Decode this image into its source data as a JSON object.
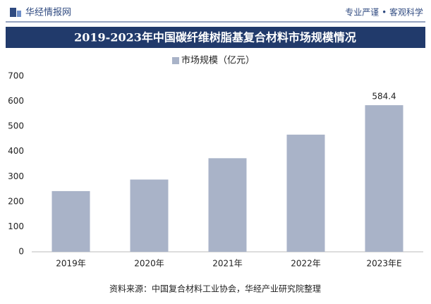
{
  "header": {
    "logo": "华经情报网",
    "slogan": "专业严谨 • 客观科学"
  },
  "chart_data": {
    "type": "bar",
    "title": "2019-2023年中国碳纤维树脂基复合材料市场规模情况",
    "categories": [
      "2019年",
      "2020年",
      "2021年",
      "2022年",
      "2023年E"
    ],
    "series": [
      {
        "name": "市场规模（亿元）",
        "color": "#a9b3c8",
        "values": [
          242,
          288,
          373,
          467,
          584.4
        ],
        "value_labels": [
          null,
          null,
          null,
          null,
          "584.4"
        ]
      }
    ],
    "ylim": [
      0,
      700
    ],
    "yticks": [
      0,
      100,
      200,
      300,
      400,
      500,
      600,
      700
    ],
    "grid": false,
    "source": "资料来源：中国复合材料工业协会，华经产业研究院整理"
  }
}
